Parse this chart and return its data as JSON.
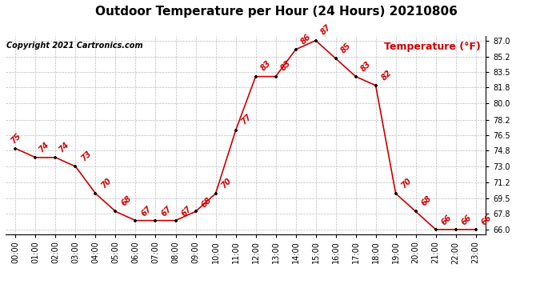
{
  "title": "Outdoor Temperature per Hour (24 Hours) 20210806",
  "copyright": "Copyright 2021 Cartronics.com",
  "legend_label": "Temperature (°F)",
  "hours": [
    0,
    1,
    2,
    3,
    4,
    5,
    6,
    7,
    8,
    9,
    10,
    11,
    12,
    13,
    14,
    15,
    16,
    17,
    18,
    19,
    20,
    21,
    22,
    23
  ],
  "temps": [
    75,
    74,
    74,
    73,
    70,
    68,
    67,
    67,
    67,
    68,
    70,
    77,
    83,
    83,
    86,
    87,
    85,
    83,
    82,
    70,
    68,
    66,
    66,
    66
  ],
  "ylim": [
    65.5,
    87.5
  ],
  "yticks": [
    66.0,
    67.8,
    69.5,
    71.2,
    73.0,
    74.8,
    76.5,
    78.2,
    80.0,
    81.8,
    83.5,
    85.2,
    87.0
  ],
  "line_color": "#cc0000",
  "marker_color": "#000000",
  "title_color": "#000000",
  "copyright_color": "#000000",
  "legend_color": "#cc0000",
  "bg_color": "#ffffff",
  "grid_color": "#bbbbbb",
  "title_fontsize": 11,
  "copyright_fontsize": 7,
  "label_fontsize": 7,
  "legend_fontsize": 9,
  "tick_fontsize": 7
}
